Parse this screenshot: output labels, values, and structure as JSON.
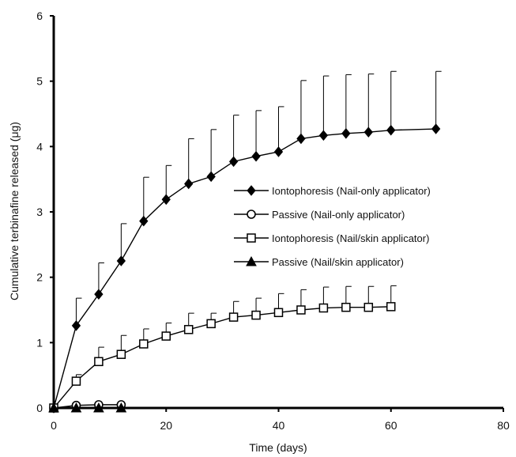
{
  "chart_data": {
    "type": "line",
    "xlabel": "Time (days)",
    "ylabel": "Cumulative terbinafine released (μg)",
    "xlim": [
      0,
      80
    ],
    "ylim": [
      0,
      6
    ],
    "xticks": [
      "0",
      "20",
      "40",
      "60",
      "80"
    ],
    "yticks": [
      "0",
      "1",
      "2",
      "3",
      "4",
      "5",
      "6"
    ],
    "grid": false,
    "legend_position": "center-right",
    "series": [
      {
        "name": "Iontophoresis (Nail-only applicator)",
        "marker": "filled-diamond",
        "x": [
          0,
          4,
          8,
          12,
          16,
          20,
          24,
          28,
          32,
          36,
          40,
          44,
          48,
          52,
          56,
          60,
          68
        ],
        "y": [
          0,
          1.26,
          1.74,
          2.25,
          2.86,
          3.19,
          3.43,
          3.54,
          3.77,
          3.85,
          3.92,
          4.12,
          4.17,
          4.2,
          4.22,
          4.25,
          4.27
        ],
        "error_upper": [
          0,
          1.68,
          2.22,
          2.82,
          3.53,
          3.71,
          4.12,
          4.26,
          4.48,
          4.55,
          4.61,
          5.01,
          5.08,
          5.1,
          5.11,
          5.15,
          5.15
        ]
      },
      {
        "name": "Passive (Nail-only applicator)",
        "marker": "open-circle",
        "x": [
          0,
          4,
          8,
          12
        ],
        "y": [
          0,
          0.04,
          0.05,
          0.05
        ],
        "error_upper": [
          0,
          0.04,
          0.05,
          0.05
        ]
      },
      {
        "name": "Iontophoresis (Nail/skin applicator)",
        "marker": "open-square",
        "x": [
          0,
          4,
          8,
          12,
          16,
          20,
          24,
          28,
          32,
          36,
          40,
          44,
          48,
          52,
          56,
          60
        ],
        "y": [
          0,
          0.41,
          0.71,
          0.82,
          0.98,
          1.1,
          1.2,
          1.29,
          1.39,
          1.42,
          1.46,
          1.5,
          1.53,
          1.54,
          1.54,
          1.55
        ],
        "error_upper": [
          0,
          0.51,
          0.93,
          1.11,
          1.21,
          1.3,
          1.45,
          1.45,
          1.63,
          1.68,
          1.75,
          1.81,
          1.85,
          1.86,
          1.86,
          1.87
        ]
      },
      {
        "name": "Passive (Nail/skin applicator)",
        "marker": "filled-triangle",
        "x": [
          0,
          4,
          8,
          12
        ],
        "y": [
          0,
          0.0,
          0.0,
          0.0
        ],
        "error_upper": [
          0,
          0.0,
          0.0,
          0.0
        ]
      }
    ]
  }
}
